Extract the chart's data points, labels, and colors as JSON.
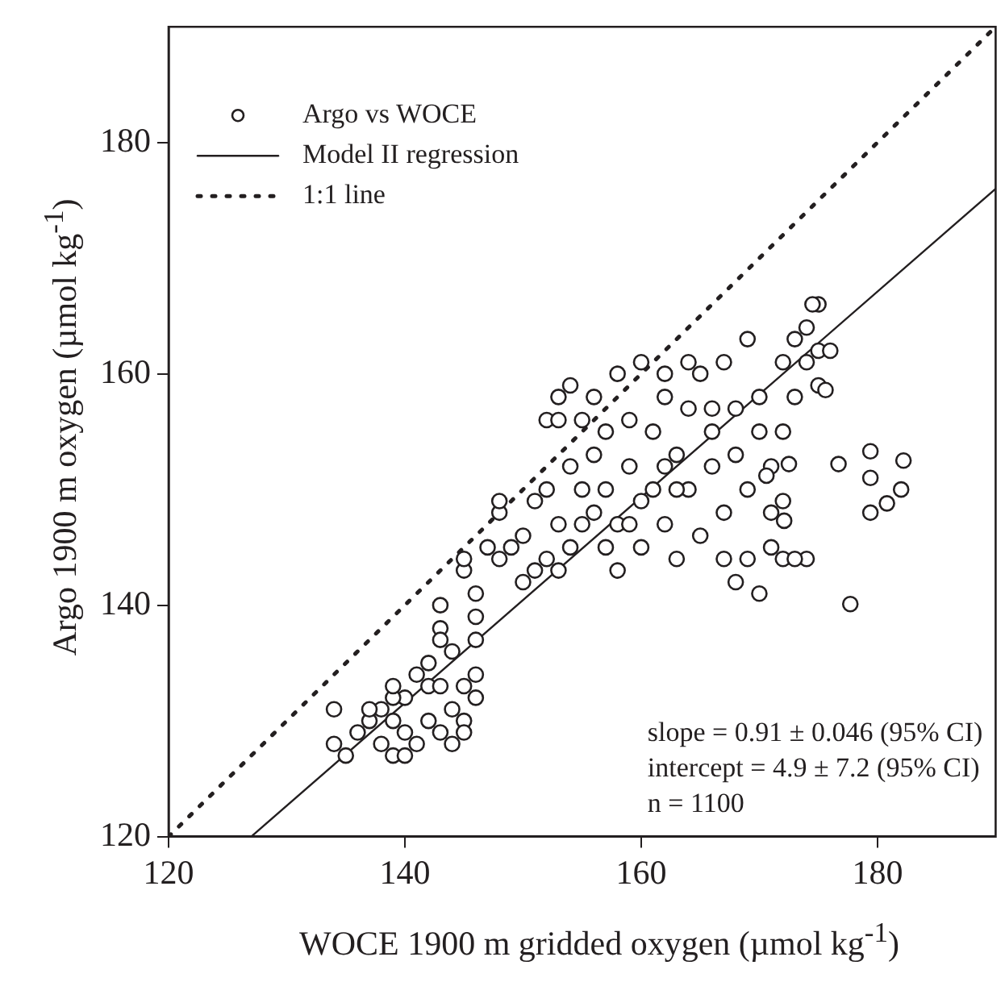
{
  "chart_data": {
    "type": "scatter",
    "xlabel": "WOCE 1900 m gridded oxygen (µmol kg$^{-1}$)",
    "ylabel": "Argo 1900 m oxygen (µmol kg$^{-1}$)",
    "xlim": [
      120,
      190
    ],
    "ylim": [
      120,
      190
    ],
    "xticks": [
      120,
      140,
      160,
      180
    ],
    "yticks": [
      120,
      140,
      160,
      180
    ],
    "grid": false,
    "legend": "top left",
    "annotations": [
      "slope = 0.91 ± 0.046 (95% CI)",
      "intercept = 4.9 ± 7.2 (95% CI)",
      "n = 1100"
    ],
    "series": [
      {
        "name": "Argo vs WOCE",
        "marker": "circle",
        "color": "#231f20",
        "x": [
          134,
          134,
          135,
          136,
          137,
          138,
          138,
          139,
          140,
          140,
          141,
          140,
          141,
          142,
          142,
          143,
          143,
          143,
          144,
          144,
          145,
          145,
          145,
          146,
          146,
          146,
          146,
          142,
          143,
          144,
          139,
          139,
          137,
          139,
          143,
          145,
          145,
          146,
          147,
          148,
          148,
          149,
          150,
          150,
          151,
          152,
          153,
          153,
          154,
          152,
          153,
          153,
          154,
          154,
          155,
          156,
          156,
          157,
          157,
          158,
          158,
          159,
          159,
          160,
          160,
          161,
          161,
          162,
          162,
          163,
          163,
          164,
          164,
          165,
          165,
          166,
          166,
          167,
          167,
          167,
          168,
          168,
          168,
          169,
          169,
          170,
          170,
          170,
          171,
          171,
          171,
          172,
          172,
          172,
          173,
          173,
          174,
          174,
          175,
          175,
          175,
          176,
          174,
          173,
          172,
          169,
          166,
          164,
          162,
          156,
          158,
          155,
          157,
          160,
          162,
          163,
          159,
          155,
          151,
          152,
          148,
          179.4,
          179.4,
          176.7,
          182.2,
          182,
          179.4,
          180.8,
          177.7,
          172.5,
          172.1,
          170.6,
          174.5,
          175.6
        ],
        "values": [
          131,
          128,
          127,
          129,
          130,
          131,
          128,
          127,
          127,
          129,
          128,
          132,
          134,
          133,
          135,
          133,
          138,
          140,
          136,
          131,
          130,
          133,
          129,
          134,
          132,
          137,
          139,
          130,
          129,
          128,
          130,
          132,
          131,
          133,
          137,
          143,
          144,
          141,
          145,
          144,
          148,
          145,
          142,
          146,
          143,
          144,
          147,
          143,
          145,
          156,
          156,
          158,
          159,
          152,
          150,
          148,
          153,
          155,
          150,
          147,
          143,
          152,
          156,
          161,
          145,
          150,
          155,
          158,
          147,
          153,
          144,
          157,
          150,
          160,
          146,
          155,
          152,
          161,
          148,
          144,
          157,
          142,
          153,
          150,
          144,
          158,
          155,
          141,
          148,
          145,
          152,
          149,
          144,
          161,
          163,
          158,
          164,
          161,
          166,
          162,
          159,
          162,
          144,
          144,
          155,
          163,
          157,
          161,
          160,
          158,
          160,
          156,
          145,
          149,
          152,
          150,
          147,
          147,
          149,
          150,
          149,
          153.3,
          151,
          152.2,
          152.5,
          150,
          148,
          148.8,
          140.1,
          152.2,
          147.3,
          151.2,
          166,
          158.6
        ]
      },
      {
        "name": "Model II regression",
        "type": "line",
        "color": "#231f20",
        "line_style": "solid",
        "x": [
          127,
          190
        ],
        "values": [
          120,
          176
        ]
      },
      {
        "name": "1:1 line",
        "type": "line",
        "color": "#231f20",
        "line_style": "dotted",
        "x": [
          120,
          190
        ],
        "values": [
          120,
          190
        ]
      }
    ]
  }
}
